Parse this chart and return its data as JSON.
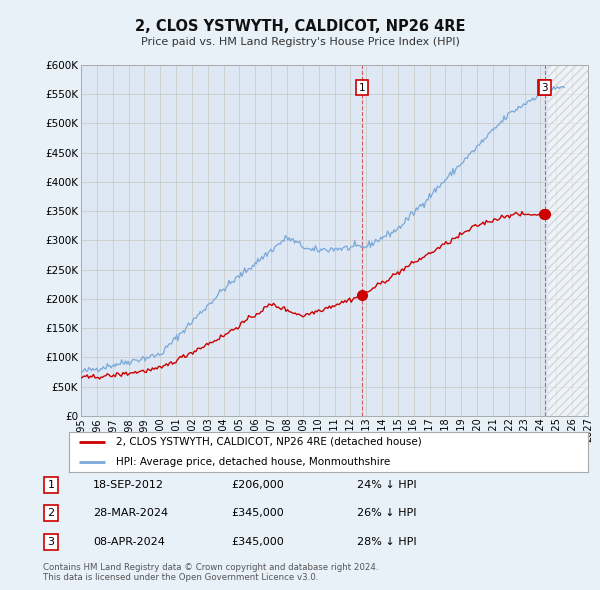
{
  "title": "2, CLOS YSTWYTH, CALDICOT, NP26 4RE",
  "subtitle": "Price paid vs. HM Land Registry's House Price Index (HPI)",
  "ytick_values": [
    0,
    50000,
    100000,
    150000,
    200000,
    250000,
    300000,
    350000,
    400000,
    450000,
    500000,
    550000,
    600000
  ],
  "xmin": 1995.0,
  "xmax": 2027.0,
  "ymin": 0,
  "ymax": 600000,
  "grid_color": "#cccccc",
  "background_color": "#e8f0f8",
  "plot_bg_color": "#dde8f4",
  "hpi_color": "#7aa8d8",
  "price_color": "#cc0000",
  "sale1_date": 2012.72,
  "sale1_price": 206000,
  "sale2_date": 2024.24,
  "sale2_price": 345000,
  "sale3_date": 2024.27,
  "sale3_price": 345000,
  "hatch_start": 2024.5,
  "legend_label_price": "2, CLOS YSTWYTH, CALDICOT, NP26 4RE (detached house)",
  "legend_label_hpi": "HPI: Average price, detached house, Monmouthshire",
  "table_rows": [
    {
      "num": "1",
      "date": "18-SEP-2012",
      "price": "£206,000",
      "hpi": "24% ↓ HPI"
    },
    {
      "num": "2",
      "date": "28-MAR-2024",
      "price": "£345,000",
      "hpi": "26% ↓ HPI"
    },
    {
      "num": "3",
      "date": "08-APR-2024",
      "price": "£345,000",
      "hpi": "28% ↓ HPI"
    }
  ],
  "footnote": "Contains HM Land Registry data © Crown copyright and database right 2024.\nThis data is licensed under the Open Government Licence v3.0.",
  "hpi_xstart": 1995.0,
  "hpi_xend": 2025.5,
  "price_xend": 2024.3
}
